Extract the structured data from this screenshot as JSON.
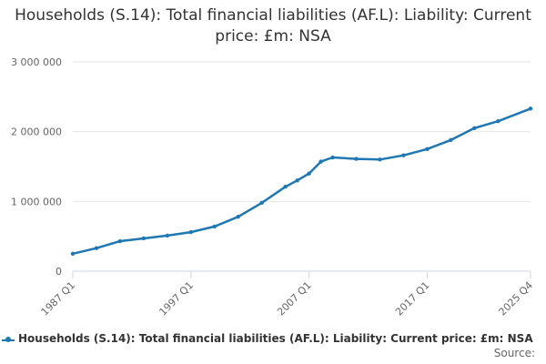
{
  "chart_data": {
    "type": "line",
    "title": "Households (S.14): Total financial liabilities (AF.L): Liability: Current price: £m: NSA",
    "xlabel": "",
    "ylabel": "",
    "ylim": [
      0,
      3000000
    ],
    "yticks": [
      0,
      1000000,
      2000000,
      3000000
    ],
    "ytick_labels": [
      "0",
      "1 000 000",
      "2 000 000",
      "3 000 000"
    ],
    "xtick_labels": [
      "1987 Q1",
      "1997 Q1",
      "2007 Q1",
      "2017 Q1",
      "2025 Q4"
    ],
    "grid": true,
    "legend_position": "bottom",
    "series": [
      {
        "name": "Households (S.14): Total financial liabilities (AF.L): Liability: Current price: £m: NSA",
        "color": "#1f77b4",
        "x": [
          "1987 Q1",
          "1989 Q1",
          "1991 Q1",
          "1993 Q1",
          "1995 Q1",
          "1997 Q1",
          "1999 Q1",
          "2001 Q1",
          "2003 Q1",
          "2005 Q1",
          "2006 Q1",
          "2007 Q1",
          "2008 Q1",
          "2009 Q1",
          "2011 Q1",
          "2013 Q1",
          "2015 Q1",
          "2017 Q1",
          "2019 Q1",
          "2021 Q1",
          "2023 Q1",
          "2025 Q4"
        ],
        "values": [
          250000,
          330000,
          430000,
          470000,
          510000,
          560000,
          640000,
          780000,
          980000,
          1210000,
          1300000,
          1400000,
          1570000,
          1630000,
          1610000,
          1600000,
          1660000,
          1750000,
          1880000,
          2050000,
          2150000,
          2330000
        ]
      }
    ]
  },
  "legend": {
    "label": "Households (S.14): Total financial liabilities (AF.L): Liability: Current price: £m: NSA"
  },
  "source_label": "Source:"
}
